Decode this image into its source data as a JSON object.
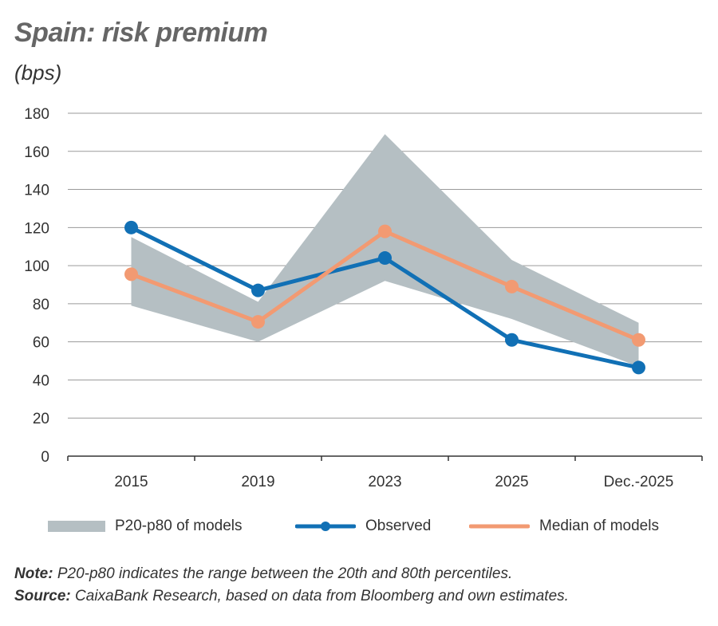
{
  "title": "Spain: risk premium",
  "subtitle": "(bps)",
  "chart_data": {
    "type": "line",
    "title": "Spain: risk premium",
    "ylabel": "(bps)",
    "categories": [
      "2015",
      "2019",
      "2023",
      "2025",
      "Dec.-2025"
    ],
    "ylim": [
      0,
      180
    ],
    "yticks": [
      0,
      20,
      40,
      60,
      80,
      100,
      120,
      140,
      160,
      180
    ],
    "grid": true,
    "legend_position": "bottom",
    "band": {
      "name": "P20-p80 of models",
      "low": [
        79,
        60,
        92,
        72,
        47
      ],
      "high": [
        115,
        81,
        169,
        103,
        70
      ]
    },
    "series": [
      {
        "name": "Observed",
        "values": [
          120,
          87,
          104,
          61,
          46.5
        ]
      },
      {
        "name": "Median of models",
        "values": [
          95.5,
          70.5,
          118,
          89,
          61
        ]
      }
    ]
  },
  "colors": {
    "band": "#b5bfc3",
    "observed": "#1170b5",
    "median": "#f29a72",
    "grid": "#9a9a9a",
    "axis": "#333333"
  },
  "legend": [
    {
      "label": "P20-p80 of models"
    },
    {
      "label": "Observed"
    },
    {
      "label": "Median of models"
    }
  ],
  "note": {
    "label": "Note:",
    "text": " P20-p80 indicates the range between the 20th and 80th percentiles."
  },
  "source": {
    "label": "Source:",
    "text": " CaixaBank Research, based on data from Bloomberg and own estimates."
  }
}
